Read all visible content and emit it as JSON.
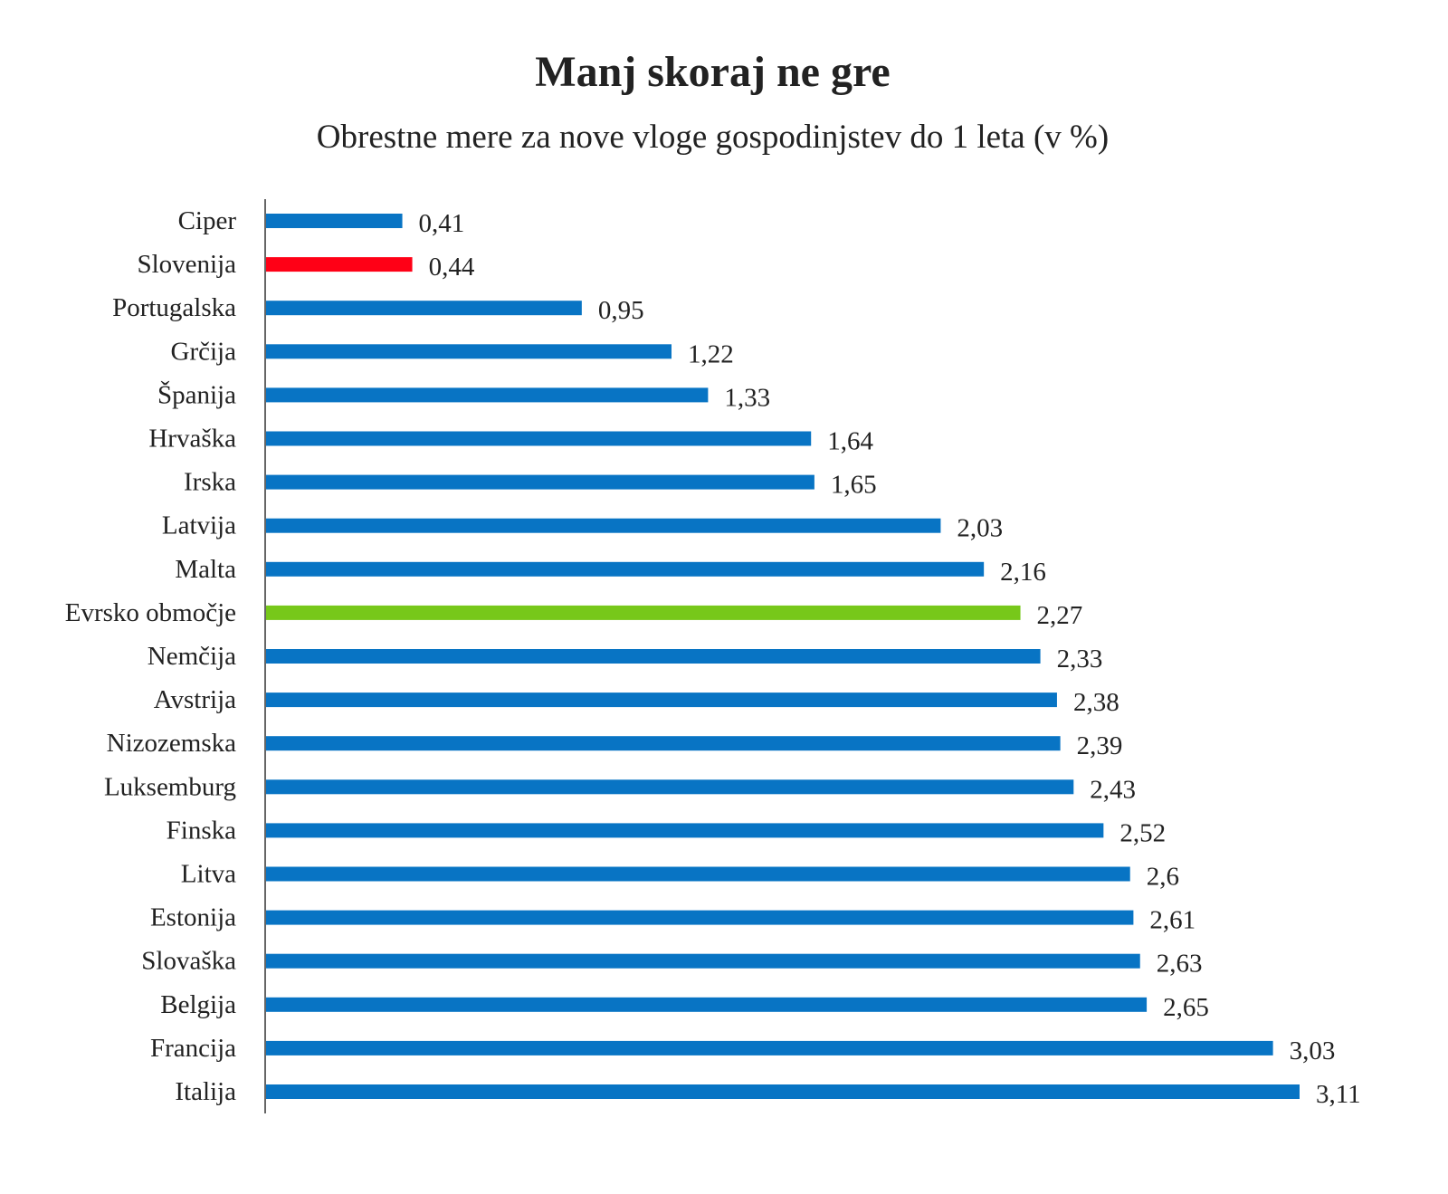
{
  "chart_data": {
    "type": "bar",
    "orientation": "horizontal",
    "title": "Manj skoraj ne gre",
    "subtitle": "Obrestne mere za nove vloge gospodinjstev do 1 leta (v %)",
    "xlabel": "",
    "ylabel": "",
    "xlim": [
      0,
      3.11
    ],
    "grid": false,
    "categories": [
      "Ciper",
      "Slovenija",
      "Portugalska",
      "Grčija",
      "Španija",
      "Hrvaška",
      "Irska",
      "Latvija",
      "Malta",
      "Evrsko območje",
      "Nemčija",
      "Avstrija",
      "Nizozemska",
      "Luksemburg",
      "Finska",
      "Litva",
      "Estonija",
      "Slovaška",
      "Belgija",
      "Francija",
      "Italija"
    ],
    "values": [
      0.41,
      0.44,
      0.95,
      1.22,
      1.33,
      1.64,
      1.65,
      2.03,
      2.16,
      2.27,
      2.33,
      2.38,
      2.39,
      2.43,
      2.52,
      2.6,
      2.61,
      2.63,
      2.65,
      3.03,
      3.11
    ],
    "value_labels": [
      "0,41",
      "0,44",
      "0,95",
      "1,22",
      "1,33",
      "1,64",
      "1,65",
      "2,03",
      "2,16",
      "2,27",
      "2,33",
      "2,38",
      "2,39",
      "2,43",
      "2,52",
      "2,6",
      "2,61",
      "2,63",
      "2,65",
      "3,03",
      "3,11"
    ],
    "colors": {
      "default": "#0874c4",
      "Slovenija": "#ff0016",
      "Evrsko območje": "#77c81a"
    }
  }
}
